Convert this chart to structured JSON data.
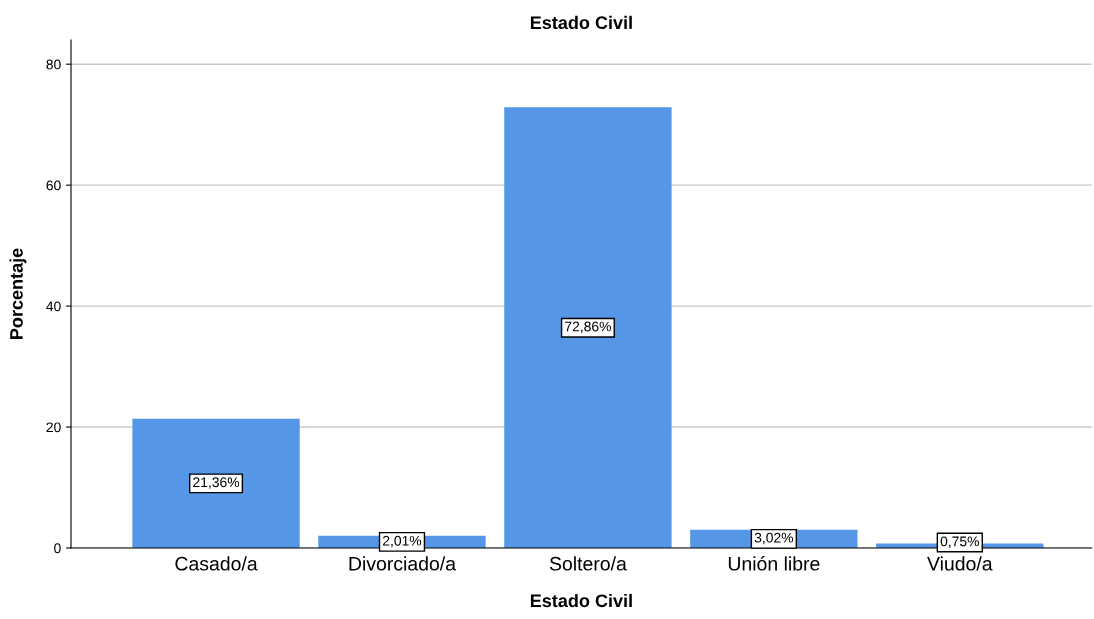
{
  "chart_data": {
    "type": "bar",
    "title": "Estado Civil",
    "xlabel": "Estado Civil",
    "ylabel": "Porcentaje",
    "categories": [
      "Casado/a",
      "Divorciado/a",
      "Soltero/a",
      "Unión libre",
      "Viudo/a"
    ],
    "values": [
      21.36,
      2.01,
      72.86,
      3.02,
      0.75
    ],
    "value_labels": [
      "21,36%",
      "2,01%",
      "72,86%",
      "3,02%",
      "0,75%"
    ],
    "color": "#5596e6",
    "ylim": [
      0,
      84
    ],
    "yticks": [
      0,
      20,
      40,
      60,
      80
    ],
    "grid": "y",
    "legend": false
  }
}
